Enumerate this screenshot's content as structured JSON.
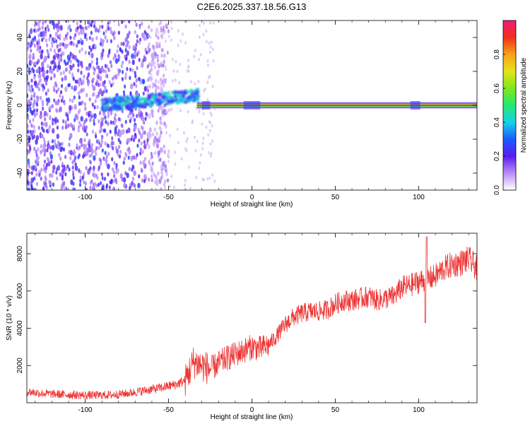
{
  "title": "C2E6.2025.337.18.56.G13",
  "chart_data": [
    {
      "type": "heatmap",
      "title": "C2E6.2025.337.18.56.G13",
      "xlabel": "Height of straight line (km)",
      "ylabel": "Frequency (Hz)",
      "xlim": [
        -135,
        135
      ],
      "ylim": [
        -50,
        50
      ],
      "x_ticks": [
        -100,
        -50,
        0,
        50,
        100
      ],
      "x_tick_labels": [
        "-100",
        "-50",
        "0",
        "50",
        "100"
      ],
      "y_ticks": [
        -40,
        -20,
        0,
        20,
        40
      ],
      "y_tick_labels": [
        "-40",
        "-20",
        "0",
        "20",
        "40"
      ],
      "colorbar": {
        "label": "Normalized spectral amplitude",
        "range": [
          0,
          1
        ],
        "ticks": [
          0,
          0.2,
          0.4,
          0.6,
          0.8
        ],
        "tick_labels": [
          "0.0",
          "0.2",
          "0.4",
          "0.6",
          "0.8"
        ]
      },
      "features": [
        {
          "name": "noise-region",
          "x_from": -135,
          "x_to": -60,
          "freq_from": -50,
          "freq_to": 50,
          "amplitude": 0.1
        },
        {
          "name": "signal-onset",
          "x_from": -90,
          "x_to": -35,
          "freq_from": -4,
          "freq_to": 10,
          "amplitude": 0.35
        },
        {
          "name": "carrier-line",
          "x_from": -33,
          "x_to": 135,
          "freq": 0,
          "amplitude": 1.0
        }
      ]
    },
    {
      "type": "line",
      "xlabel": "Height of straight line (km)",
      "ylabel": "SNR (10 * v/v)",
      "xlim": [
        -135,
        135
      ],
      "ylim": [
        0,
        9100
      ],
      "x_ticks": [
        -100,
        -50,
        0,
        50,
        100
      ],
      "x_tick_labels": [
        "-100",
        "-50",
        "0",
        "50",
        "100"
      ],
      "y_ticks": [
        2000,
        4000,
        6000,
        8000
      ],
      "y_tick_labels": [
        "2000",
        "4000",
        "6000",
        "8000"
      ],
      "series": [
        {
          "name": "SNR",
          "color": "#ee3333",
          "x": [
            -135,
            -125,
            -115,
            -105,
            -95,
            -85,
            -75,
            -65,
            -55,
            -45,
            -40,
            -35,
            -30,
            -25,
            -20,
            -15,
            -10,
            -5,
            0,
            5,
            10,
            15,
            20,
            25,
            30,
            35,
            40,
            45,
            50,
            55,
            60,
            65,
            70,
            75,
            80,
            85,
            90,
            95,
            100,
            105,
            110,
            115,
            120,
            125,
            130,
            135
          ],
          "values": [
            600,
            500,
            450,
            420,
            400,
            420,
            500,
            650,
            800,
            1000,
            1200,
            2200,
            2000,
            1800,
            2100,
            2400,
            2600,
            2800,
            3000,
            2900,
            3100,
            3600,
            4200,
            4600,
            4800,
            4900,
            4900,
            5000,
            5300,
            5500,
            5500,
            5600,
            5700,
            5500,
            5600,
            5700,
            6200,
            6300,
            6500,
            6600,
            6800,
            7200,
            7400,
            7500,
            7700,
            7200
          ]
        }
      ]
    }
  ]
}
